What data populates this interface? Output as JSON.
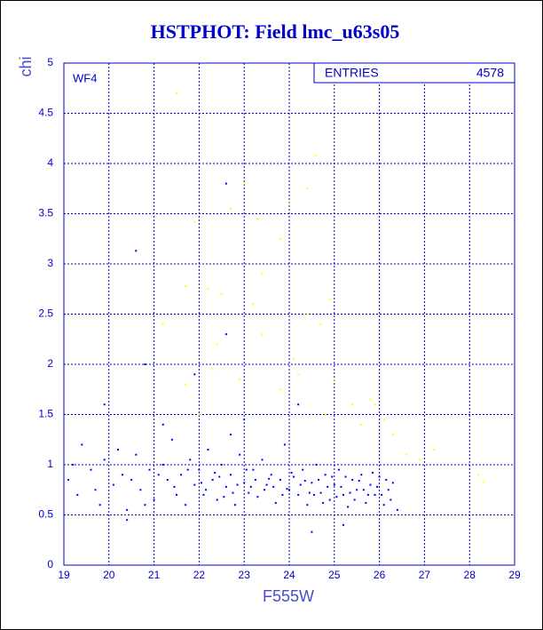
{
  "chart_data": {
    "type": "scatter",
    "title": "HSTPHOT: Field lmc_u63s05",
    "x_label": "F555W",
    "y_label": "chi",
    "annotation": "WF4",
    "stats_label": "ENTRIES",
    "stats_value": "4578",
    "xlim": [
      19,
      29
    ],
    "ylim": [
      0,
      5
    ],
    "xticks": [
      19,
      20,
      21,
      22,
      23,
      24,
      25,
      26,
      27,
      28,
      29
    ],
    "yticks": [
      0,
      0.5,
      1,
      1.5,
      2,
      2.5,
      3,
      3.5,
      4,
      4.5,
      5
    ],
    "grid": true,
    "series": [
      {
        "color": "#0000ff",
        "x": [
          19.1,
          19.3,
          19.4,
          19.6,
          19.8,
          19.9,
          20.1,
          20.3,
          20.4,
          20.6,
          20.7,
          20.9,
          21.0,
          21.2,
          21.3,
          21.4,
          21.5,
          21.6,
          21.7,
          21.8,
          21.9,
          22.0,
          22.1,
          22.2,
          22.3,
          22.4,
          22.5,
          22.6,
          22.7,
          22.8,
          22.9,
          23.0,
          23.1,
          23.2,
          23.3,
          23.4,
          23.5,
          23.6,
          23.7,
          23.8,
          23.9,
          24.0,
          24.1,
          24.2,
          24.3,
          24.4,
          24.5,
          24.6,
          24.7,
          24.8,
          24.9,
          25.0,
          25.1,
          25.2,
          25.3,
          25.4,
          25.5,
          25.6,
          25.7,
          25.8,
          25.9,
          26.0,
          26.1,
          26.2,
          26.3,
          26.4,
          19.2,
          19.7,
          20.2,
          20.5,
          20.8,
          21.1,
          21.45,
          21.75,
          22.05,
          22.35,
          22.55,
          22.85,
          23.05,
          23.25,
          23.45,
          23.65,
          23.85,
          24.05,
          24.25,
          24.45,
          24.65,
          24.85,
          25.05,
          25.25,
          25.45,
          25.65,
          25.85,
          26.05,
          26.25,
          22.15,
          22.45,
          22.75,
          23.15,
          23.55,
          23.95,
          24.35,
          24.55,
          24.75,
          24.95,
          25.15,
          25.35,
          25.55,
          25.75,
          25.95,
          26.15,
          20.6,
          22.6,
          22.6,
          21.9,
          20.8,
          23.0,
          24.2,
          21.2,
          19.9,
          22.7,
          20.4,
          25.2,
          24.5
        ],
        "values": [
          0.85,
          0.7,
          1.2,
          0.95,
          0.6,
          1.05,
          0.8,
          0.9,
          0.55,
          1.1,
          0.75,
          0.95,
          0.65,
          1.0,
          0.85,
          1.25,
          0.7,
          0.9,
          0.6,
          1.05,
          0.8,
          0.95,
          0.7,
          1.15,
          0.85,
          0.65,
          1.0,
          0.78,
          0.9,
          0.6,
          1.1,
          0.82,
          0.72,
          0.95,
          0.68,
          1.05,
          0.8,
          0.9,
          0.62,
          0.85,
          1.2,
          0.75,
          0.88,
          0.7,
          0.95,
          0.6,
          0.82,
          1.0,
          0.72,
          0.9,
          0.65,
          0.8,
          0.95,
          0.7,
          0.58,
          0.85,
          0.75,
          0.9,
          0.62,
          0.8,
          0.7,
          0.88,
          0.6,
          0.75,
          0.82,
          0.55,
          1.0,
          0.75,
          1.15,
          0.85,
          0.6,
          0.9,
          0.78,
          0.95,
          0.82,
          0.92,
          0.68,
          0.8,
          0.95,
          0.85,
          0.75,
          0.78,
          0.7,
          0.92,
          0.8,
          0.72,
          0.85,
          0.78,
          0.68,
          0.88,
          0.65,
          0.75,
          0.92,
          0.7,
          0.65,
          0.75,
          0.88,
          0.72,
          0.78,
          0.86,
          0.76,
          0.84,
          0.7,
          0.62,
          0.88,
          0.78,
          0.72,
          0.84,
          0.7,
          0.78,
          0.85,
          3.13,
          3.8,
          2.3,
          1.9,
          2.0,
          1.45,
          1.6,
          1.4,
          1.6,
          1.3,
          0.45,
          0.4,
          0.33
        ]
      },
      {
        "color": "#ffff00",
        "x": [
          21.5,
          24.6,
          24.4,
          23.0,
          22.7,
          23.3,
          23.8,
          21.9,
          23.4,
          22.2,
          21.7,
          23.2,
          24.9,
          22.4,
          21.2,
          23.4,
          24.1,
          24.7,
          22.3,
          21.7,
          23.8,
          24.2,
          25.0,
          25.4,
          25.9,
          24.8,
          25.6,
          26.3,
          26.6,
          27.2,
          28.2,
          28.3,
          26.9,
          22.9,
          22.5,
          24.4,
          25.8,
          24.0,
          22.0,
          26.1
        ],
        "values": [
          4.7,
          4.08,
          3.75,
          3.8,
          3.55,
          3.45,
          3.25,
          3.42,
          2.9,
          2.75,
          2.78,
          2.6,
          2.65,
          2.2,
          2.4,
          2.3,
          2.05,
          2.4,
          1.95,
          1.8,
          1.75,
          1.9,
          1.85,
          1.6,
          1.6,
          1.5,
          1.4,
          1.3,
          1.1,
          1.15,
          0.9,
          0.83,
          1.05,
          1.85,
          2.7,
          2.5,
          1.65,
          3.6,
          1.5,
          1.45
        ]
      }
    ]
  }
}
